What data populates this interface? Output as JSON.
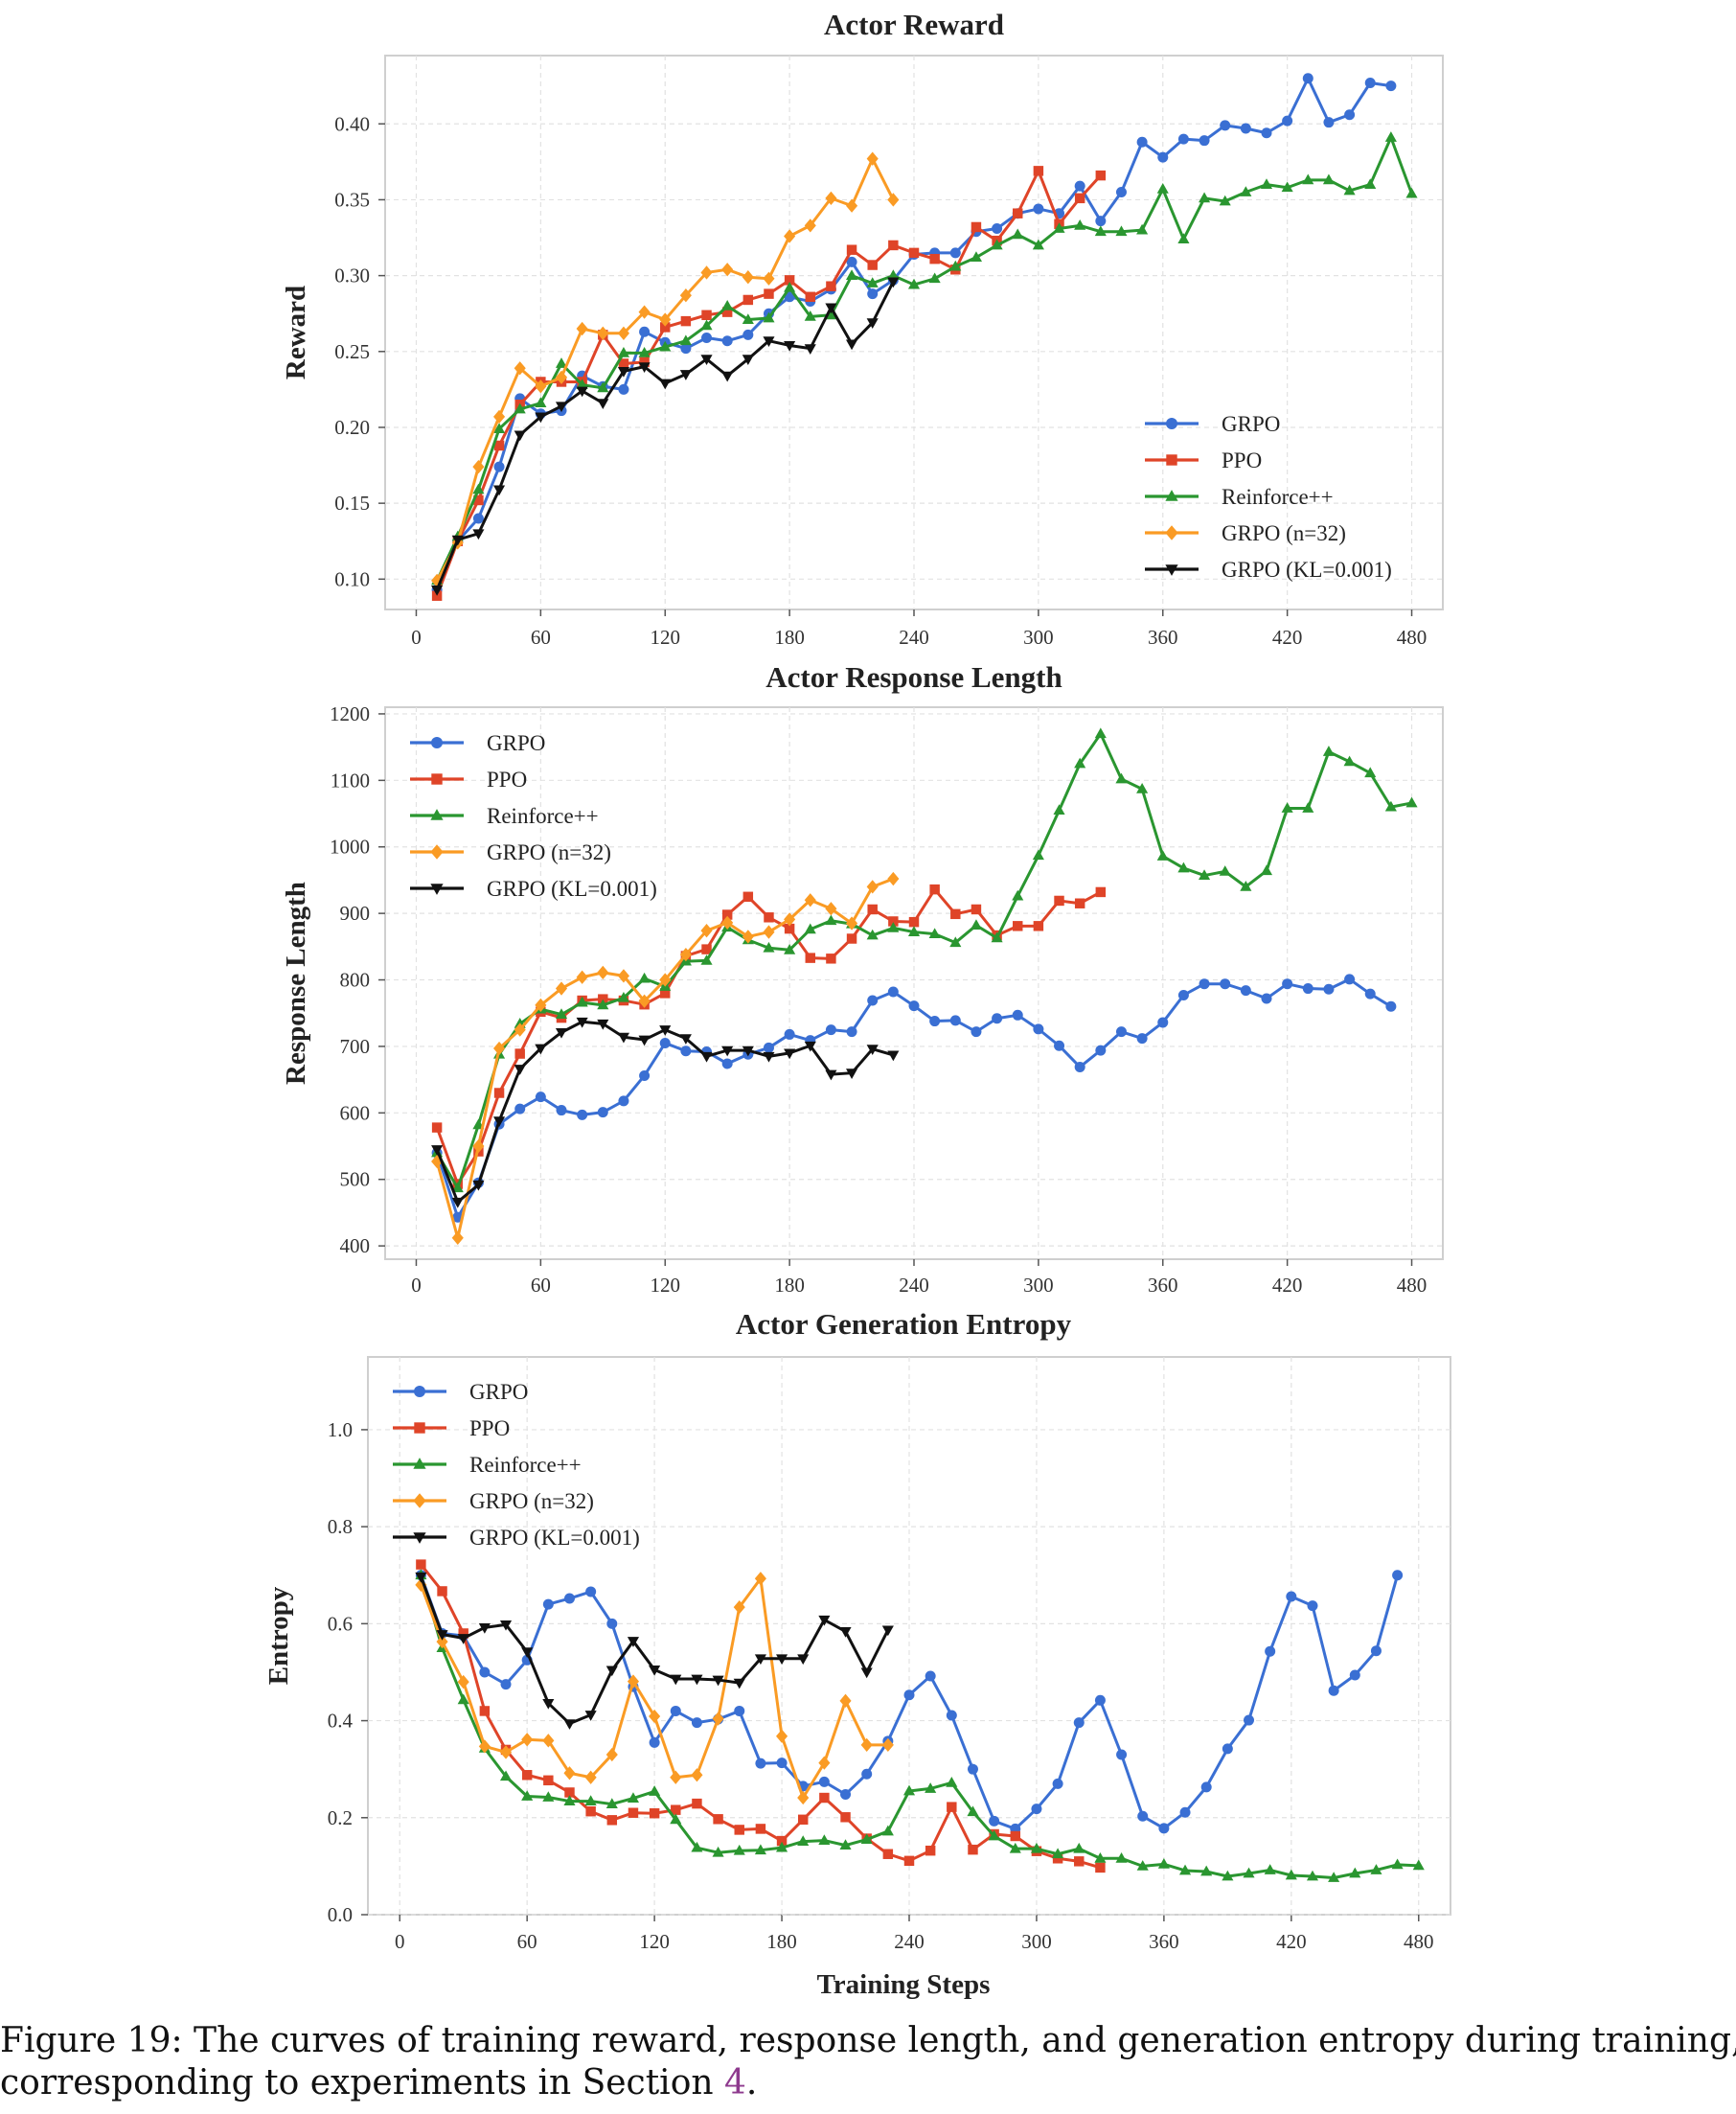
{
  "series_style": [
    {
      "name": "GRPO",
      "color": "#3a6fd3",
      "marker": "circle"
    },
    {
      "name": "PPO",
      "color": "#df4428",
      "marker": "square"
    },
    {
      "name": "Reinforce++",
      "color": "#2a9630",
      "marker": "triangle-up"
    },
    {
      "name": "GRPO (n=32)",
      "color": "#fa9b24",
      "marker": "diamond"
    },
    {
      "name": "GRPO (KL=0.001)",
      "color": "#111111",
      "marker": "triangle-down"
    }
  ],
  "chart_data": [
    {
      "type": "line",
      "title": "Actor Reward",
      "xlabel": "",
      "ylabel": "Reward",
      "xlim": [
        -15,
        495
      ],
      "ylim": [
        0.08,
        0.445
      ],
      "xticks": [
        0,
        60,
        120,
        180,
        240,
        300,
        360,
        420,
        480
      ],
      "yticks": [
        0.1,
        0.15,
        0.2,
        0.25,
        0.3,
        0.35,
        0.4
      ],
      "ytick_labels": [
        "0.10",
        "0.15",
        "0.20",
        "0.25",
        "0.30",
        "0.35",
        "0.40"
      ],
      "grid": true,
      "legend_position": "lower-right",
      "series": [
        {
          "name": "GRPO",
          "x_start": 10,
          "x_step": 10,
          "values": [
            0.093,
            0.125,
            0.14,
            0.174,
            0.219,
            0.209,
            0.211,
            0.234,
            0.227,
            0.225,
            0.263,
            0.256,
            0.252,
            0.259,
            0.257,
            0.261,
            0.275,
            0.286,
            0.283,
            0.291,
            0.309,
            0.288,
            0.297,
            0.314,
            0.315,
            0.315,
            0.329,
            0.331,
            0.341,
            0.344,
            0.341,
            0.359,
            0.336,
            0.355,
            0.388,
            0.378,
            0.39,
            0.389,
            0.399,
            0.397,
            0.394,
            0.402,
            0.43,
            0.401,
            0.406,
            0.427,
            0.425
          ]
        },
        {
          "name": "PPO",
          "x_start": 10,
          "x_step": 10,
          "values": [
            0.089,
            0.125,
            0.152,
            0.188,
            0.215,
            0.23,
            0.23,
            0.23,
            0.261,
            0.242,
            0.243,
            0.266,
            0.27,
            0.274,
            0.276,
            0.284,
            0.288,
            0.297,
            0.286,
            0.293,
            0.317,
            0.307,
            0.32,
            0.315,
            0.311,
            0.304,
            0.332,
            0.323,
            0.341,
            0.369,
            0.334,
            0.351,
            0.366
          ]
        },
        {
          "name": "Reinforce++",
          "x_start": 10,
          "x_step": 10,
          "values": [
            0.099,
            0.128,
            0.159,
            0.199,
            0.212,
            0.216,
            0.242,
            0.228,
            0.226,
            0.249,
            0.249,
            0.253,
            0.257,
            0.267,
            0.28,
            0.271,
            0.272,
            0.292,
            0.273,
            0.274,
            0.3,
            0.295,
            0.3,
            0.294,
            0.298,
            0.306,
            0.312,
            0.32,
            0.327,
            0.32,
            0.331,
            0.333,
            0.329,
            0.329,
            0.33,
            0.357,
            0.324,
            0.351,
            0.349,
            0.355,
            0.36,
            0.358,
            0.363,
            0.363,
            0.356,
            0.36,
            0.391,
            0.354
          ]
        },
        {
          "name": "GRPO (n=32)",
          "x_start": 10,
          "x_step": 10,
          "values": [
            0.099,
            0.124,
            0.174,
            0.207,
            0.239,
            0.227,
            0.233,
            0.265,
            0.262,
            0.262,
            0.276,
            0.271,
            0.287,
            0.302,
            0.304,
            0.299,
            0.298,
            0.326,
            0.333,
            0.351,
            0.346,
            0.377,
            0.35
          ]
        },
        {
          "name": "GRPO (KL=0.001)",
          "x_start": 10,
          "x_step": 10,
          "values": [
            0.093,
            0.126,
            0.13,
            0.159,
            0.195,
            0.207,
            0.214,
            0.224,
            0.216,
            0.237,
            0.24,
            0.229,
            0.235,
            0.245,
            0.234,
            0.245,
            0.257,
            0.254,
            0.252,
            0.279,
            0.255,
            0.269,
            0.296
          ]
        }
      ]
    },
    {
      "type": "line",
      "title": "Actor Response Length",
      "xlabel": "",
      "ylabel": "Response Length",
      "xlim": [
        -15,
        495
      ],
      "ylim": [
        380,
        1210
      ],
      "xticks": [
        0,
        60,
        120,
        180,
        240,
        300,
        360,
        420,
        480
      ],
      "yticks": [
        400,
        500,
        600,
        700,
        800,
        900,
        1000,
        1100,
        1200
      ],
      "ytick_labels": [
        "400",
        "500",
        "600",
        "700",
        "800",
        "900",
        "1000",
        "1100",
        "1200"
      ],
      "grid": true,
      "legend_position": "upper-left",
      "series": [
        {
          "name": "GRPO",
          "x_start": 10,
          "x_step": 10,
          "values": [
            540,
            443,
            495,
            583,
            606,
            624,
            604,
            597,
            601,
            618,
            656,
            705,
            693,
            692,
            674,
            688,
            698,
            718,
            709,
            725,
            722,
            769,
            782,
            761,
            738,
            739,
            722,
            742,
            747,
            726,
            701,
            669,
            694,
            722,
            712,
            736,
            777,
            794,
            794,
            784,
            772,
            794,
            787,
            786,
            801,
            779,
            760
          ]
        },
        {
          "name": "PPO",
          "x_start": 10,
          "x_step": 10,
          "values": [
            578,
            493,
            542,
            630,
            689,
            752,
            743,
            769,
            771,
            769,
            763,
            780,
            836,
            846,
            898,
            925,
            894,
            877,
            833,
            832,
            862,
            906,
            888,
            887,
            936,
            899,
            906,
            867,
            881,
            881,
            919,
            915,
            932
          ]
        },
        {
          "name": "Reinforce++",
          "x_start": 10,
          "x_step": 10,
          "values": [
            540,
            487,
            582,
            688,
            734,
            756,
            748,
            766,
            762,
            773,
            802,
            790,
            828,
            829,
            879,
            860,
            848,
            845,
            876,
            889,
            884,
            867,
            878,
            872,
            869,
            856,
            882,
            863,
            926,
            987,
            1055,
            1125,
            1170,
            1102,
            1087,
            986,
            968,
            957,
            963,
            940,
            964,
            1058,
            1058,
            1143,
            1128,
            1111,
            1060,
            1066
          ]
        },
        {
          "name": "GRPO (n=32)",
          "x_start": 10,
          "x_step": 10,
          "values": [
            527,
            412,
            550,
            697,
            725,
            762,
            787,
            804,
            811,
            806,
            768,
            800,
            838,
            874,
            886,
            865,
            872,
            891,
            920,
            907,
            885,
            940,
            952
          ]
        },
        {
          "name": "GRPO (KL=0.001)",
          "x_start": 10,
          "x_step": 10,
          "values": [
            545,
            466,
            492,
            588,
            666,
            697,
            721,
            737,
            734,
            714,
            710,
            725,
            712,
            685,
            694,
            694,
            685,
            690,
            701,
            658,
            660,
            696,
            687
          ]
        }
      ]
    },
    {
      "type": "line",
      "title": "Actor Generation Entropy",
      "xlabel": "Training Steps",
      "ylabel": "Entropy",
      "xlim": [
        -15,
        495
      ],
      "ylim": [
        0.0,
        1.15
      ],
      "xticks": [
        0,
        60,
        120,
        180,
        240,
        300,
        360,
        420,
        480
      ],
      "yticks": [
        0.0,
        0.2,
        0.4,
        0.6,
        0.8,
        1.0
      ],
      "ytick_labels": [
        "0.0",
        "0.2",
        "0.4",
        "0.6",
        "0.8",
        "1.0"
      ],
      "grid": true,
      "legend_position": "upper-left",
      "series": [
        {
          "name": "GRPO",
          "x_start": 10,
          "x_step": 10,
          "values": [
            0.7,
            0.58,
            0.575,
            0.5,
            0.475,
            0.525,
            0.64,
            0.652,
            0.666,
            0.6,
            0.47,
            0.355,
            0.42,
            0.396,
            0.403,
            0.42,
            0.312,
            0.313,
            0.265,
            0.274,
            0.248,
            0.29,
            0.358,
            0.453,
            0.492,
            0.411,
            0.3,
            0.193,
            0.177,
            0.218,
            0.27,
            0.396,
            0.442,
            0.33,
            0.203,
            0.178,
            0.211,
            0.263,
            0.342,
            0.401,
            0.543,
            0.656,
            0.637,
            0.462,
            0.494,
            0.544,
            0.7
          ]
        },
        {
          "name": "PPO",
          "x_start": 10,
          "x_step": 10,
          "values": [
            0.722,
            0.667,
            0.58,
            0.42,
            0.34,
            0.288,
            0.277,
            0.252,
            0.213,
            0.195,
            0.21,
            0.209,
            0.216,
            0.229,
            0.197,
            0.175,
            0.177,
            0.152,
            0.196,
            0.241,
            0.201,
            0.157,
            0.125,
            0.111,
            0.132,
            0.222,
            0.134,
            0.166,
            0.162,
            0.131,
            0.116,
            0.11,
            0.097
          ]
        },
        {
          "name": "Reinforce++",
          "x_start": 10,
          "x_step": 10,
          "values": [
            0.7,
            0.55,
            0.443,
            0.343,
            0.285,
            0.244,
            0.242,
            0.234,
            0.234,
            0.228,
            0.24,
            0.254,
            0.196,
            0.138,
            0.128,
            0.132,
            0.133,
            0.138,
            0.151,
            0.153,
            0.143,
            0.155,
            0.172,
            0.255,
            0.26,
            0.272,
            0.212,
            0.162,
            0.136,
            0.136,
            0.125,
            0.136,
            0.116,
            0.116,
            0.1,
            0.104,
            0.091,
            0.089,
            0.079,
            0.085,
            0.092,
            0.081,
            0.079,
            0.076,
            0.085,
            0.092,
            0.103,
            0.101
          ]
        },
        {
          "name": "GRPO (n=32)",
          "x_start": 10,
          "x_step": 10,
          "values": [
            0.68,
            0.563,
            0.48,
            0.347,
            0.335,
            0.361,
            0.359,
            0.292,
            0.283,
            0.33,
            0.481,
            0.409,
            0.283,
            0.288,
            0.404,
            0.634,
            0.693,
            0.368,
            0.241,
            0.313,
            0.441,
            0.35,
            0.35
          ]
        },
        {
          "name": "GRPO (KL=0.001)",
          "x_start": 10,
          "x_step": 10,
          "values": [
            0.697,
            0.578,
            0.57,
            0.592,
            0.598,
            0.542,
            0.436,
            0.394,
            0.412,
            0.504,
            0.564,
            0.505,
            0.486,
            0.486,
            0.484,
            0.478,
            0.528,
            0.528,
            0.528,
            0.608,
            0.584,
            0.5,
            0.587
          ]
        }
      ]
    }
  ],
  "caption": {
    "line1": "Figure 19: The curves of training reward, response length, and generation entropy during training,",
    "line2_prefix": "corresponding to experiments in Section ",
    "line2_ref": "4",
    "line2_suffix": "."
  }
}
